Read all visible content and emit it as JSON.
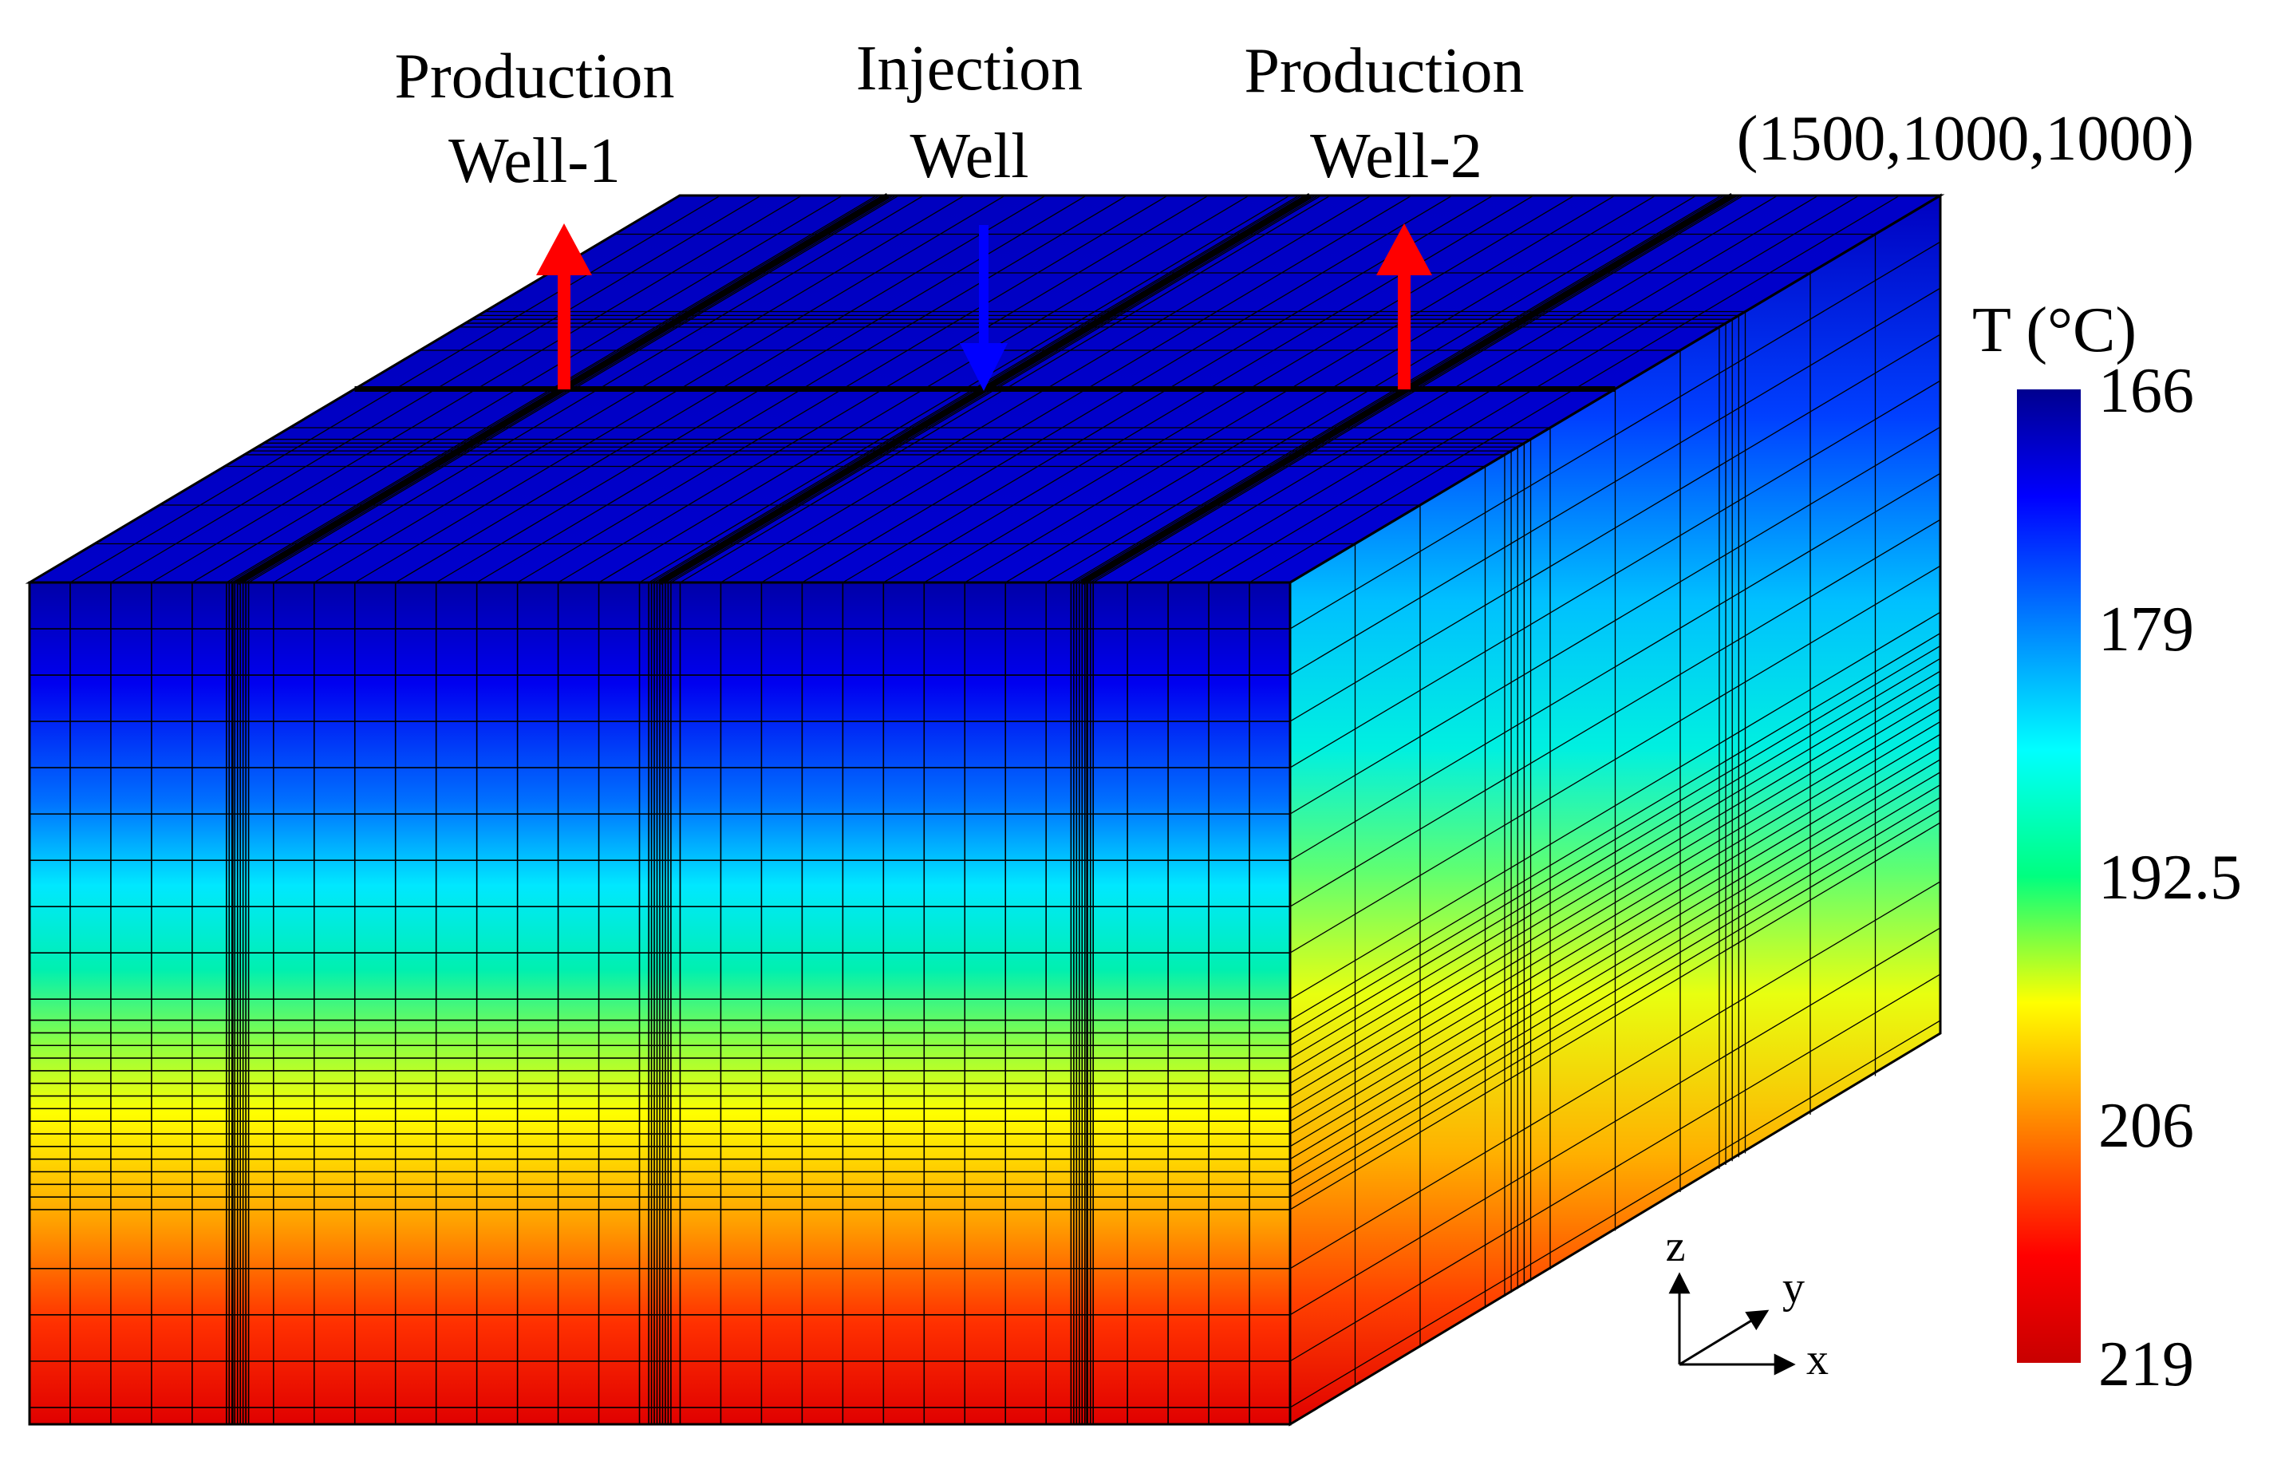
{
  "wells": [
    {
      "id": "production-well-1",
      "line1": "Production",
      "line2": "Well-1",
      "kind": "production",
      "color": "#ff0000"
    },
    {
      "id": "injection-well",
      "line1": "Injection",
      "line2": "Well",
      "kind": "injection",
      "color": "#0000ff"
    },
    {
      "id": "production-well-2",
      "line1": "Production",
      "line2": "Well-2",
      "kind": "production",
      "color": "#ff0000"
    }
  ],
  "corner_label": "(1500,1000,1000)",
  "colorbar": {
    "title": "T (°C)",
    "min": 166,
    "max": 219,
    "ticks": [
      "166",
      "179",
      "192.5",
      "206",
      "219"
    ],
    "tick_values": [
      166,
      179,
      192.5,
      206,
      219
    ],
    "colors": [
      "#00008f",
      "#0000ff",
      "#0080ff",
      "#00ffff",
      "#00ff80",
      "#ffff00",
      "#ff8000",
      "#ff0000",
      "#c80000"
    ]
  },
  "axes": {
    "x": "x",
    "y": "y",
    "z": "z"
  },
  "chart_data": {
    "type": "heatmap",
    "title": "",
    "variable": "T (°C)",
    "range": [
      166,
      219
    ],
    "domain_corner": "(1500,1000,1000)",
    "well_positions_x_fraction": [
      0.165,
      0.5,
      0.835
    ]
  }
}
